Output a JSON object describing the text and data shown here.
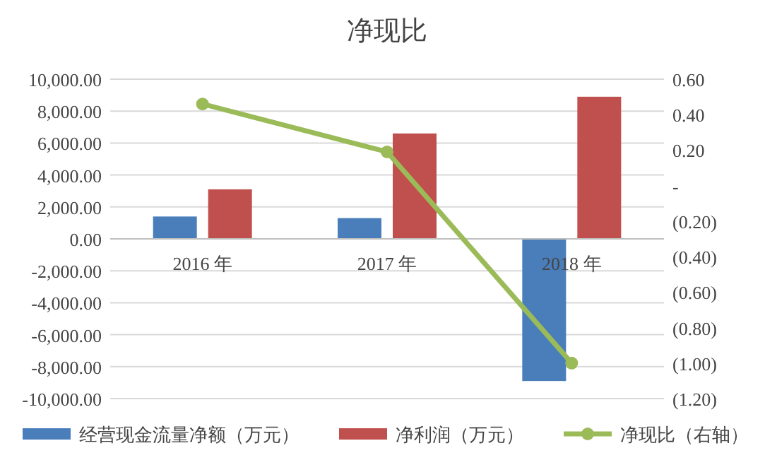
{
  "chart_data": {
    "type": "bar",
    "title": "净现比",
    "categories": [
      "2016 年",
      "2017 年",
      "2018 年"
    ],
    "series": [
      {
        "name": "经营现金流量净额（万元）",
        "color": "#4a7ebb",
        "values": [
          1400,
          1300,
          -8900
        ]
      },
      {
        "name": "净利润（万元）",
        "color": "#c0504d",
        "values": [
          3100,
          6600,
          8900
        ]
      },
      {
        "name": "净现比（右轴）",
        "type": "line",
        "axis": "y2",
        "color": "#9bbb59",
        "values": [
          0.46,
          0.19,
          -1.0
        ]
      }
    ],
    "ylim": [
      -10000,
      10000
    ],
    "yticks": [
      {
        "value": -10000,
        "label": "-10,000.00"
      },
      {
        "value": -8000,
        "label": "-8,000.00"
      },
      {
        "value": -6000,
        "label": "-6,000.00"
      },
      {
        "value": -4000,
        "label": "-4,000.00"
      },
      {
        "value": -2000,
        "label": "-2,000.00"
      },
      {
        "value": 0,
        "label": "0.00"
      },
      {
        "value": 2000,
        "label": "2,000.00"
      },
      {
        "value": 4000,
        "label": "4,000.00"
      },
      {
        "value": 6000,
        "label": "6,000.00"
      },
      {
        "value": 8000,
        "label": "8,000.00"
      },
      {
        "value": 10000,
        "label": "10,000.00"
      }
    ],
    "y2lim": [
      -1.2,
      0.6
    ],
    "y2ticks": [
      {
        "value": -1.2,
        "label": "(1.20)"
      },
      {
        "value": -1.0,
        "label": "(1.00)"
      },
      {
        "value": -0.8,
        "label": "(0.80)"
      },
      {
        "value": -0.6,
        "label": "(0.60)"
      },
      {
        "value": -0.4,
        "label": "(0.40)"
      },
      {
        "value": -0.2,
        "label": "(0.20)"
      },
      {
        "value": 0,
        "label": "-"
      },
      {
        "value": 0.2,
        "label": "0.20"
      },
      {
        "value": 0.4,
        "label": "0.40"
      },
      {
        "value": 0.6,
        "label": "0.60"
      }
    ],
    "grid": "y",
    "legend": "bottom",
    "marker": "circle"
  }
}
